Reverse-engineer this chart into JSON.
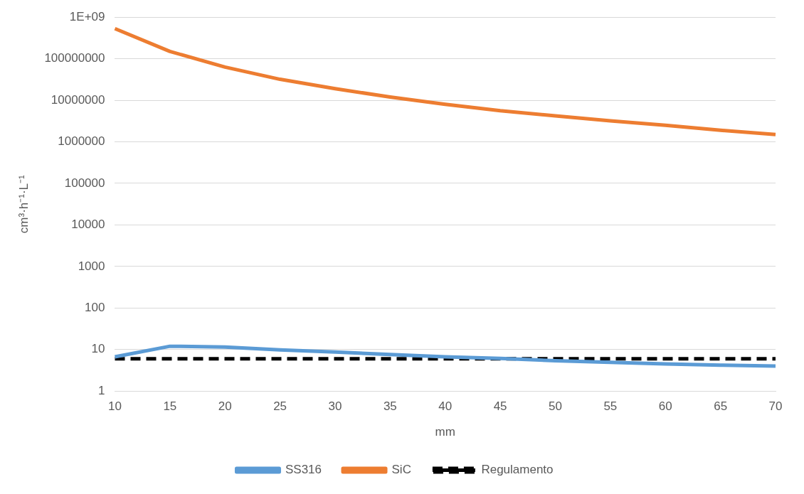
{
  "chart_data": {
    "type": "line",
    "xlabel": "mm",
    "ylabel": "cm³·h⁻¹·L⁻¹",
    "categories": [
      "10",
      "15",
      "20",
      "25",
      "30",
      "35",
      "40",
      "45",
      "50",
      "55",
      "60",
      "65",
      "70"
    ],
    "series": [
      {
        "name": "SS316",
        "color": "#5b9bd5",
        "line_style": "solid",
        "values": [
          6.7,
          12,
          11.5,
          9.8,
          8.7,
          7.6,
          6.7,
          6.1,
          5.4,
          4.9,
          4.5,
          4.2,
          4.0
        ]
      },
      {
        "name": "SiC",
        "color": "#ed7d31",
        "line_style": "solid",
        "values": [
          530000000,
          150000000,
          63000000,
          32000000,
          19000000,
          12000000,
          8000000,
          5600000,
          4200000,
          3200000,
          2500000,
          1900000,
          1500000
        ]
      },
      {
        "name": "Regulamento",
        "color": "#000000",
        "line_style": "dashed",
        "values": [
          6,
          6,
          6,
          6,
          6,
          6,
          6,
          6,
          6,
          6,
          6,
          6,
          6
        ]
      }
    ],
    "log": "y",
    "ylim": [
      1,
      1000000000
    ],
    "yticks": [
      1,
      10,
      100,
      1000,
      10000,
      100000,
      1000000,
      10000000,
      100000000,
      {
        "value": 1000000000,
        "label": "1E+09"
      }
    ],
    "grid": "y",
    "legend": "bottom",
    "marker": "none"
  }
}
